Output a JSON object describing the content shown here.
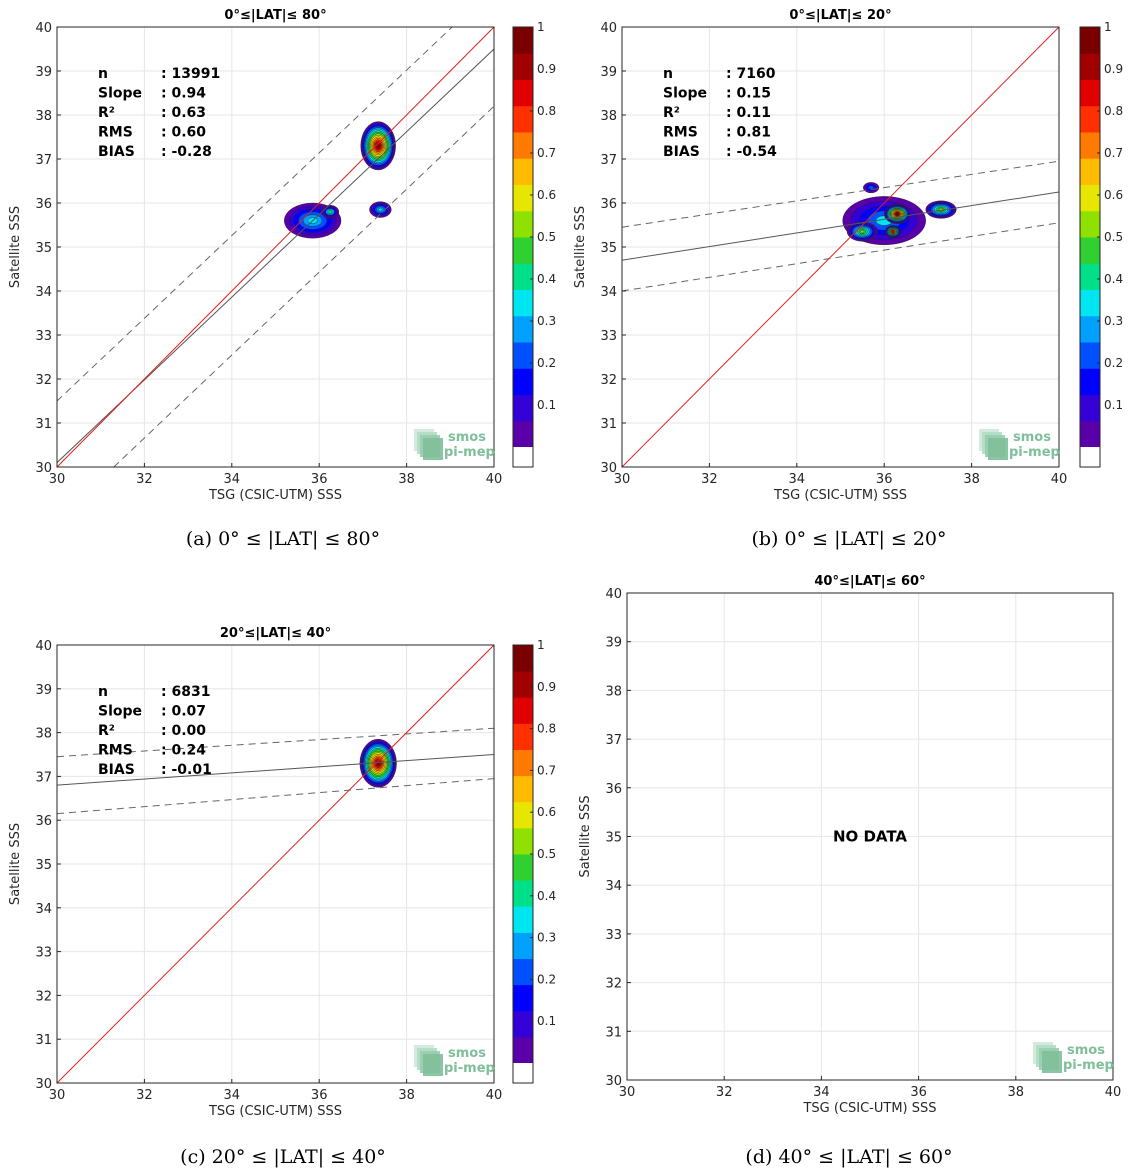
{
  "colors": {
    "identity_line": "#e02020",
    "fit_line": "#555555",
    "grid": "#e6e6e6",
    "colormap": [
      "#5a00a8",
      "#3300d8",
      "#0000ff",
      "#0050ff",
      "#00a0ff",
      "#00e6f0",
      "#00e08a",
      "#30d030",
      "#90e000",
      "#e6e600",
      "#ffbb00",
      "#ff7a00",
      "#ff3000",
      "#e00000",
      "#a00000",
      "#7a0000"
    ]
  },
  "logo": {
    "line1": "smos",
    "line2": "pi-mep"
  },
  "charts": [
    {
      "id": "a",
      "title": "0°≤|LAT|≤ 80°",
      "caption": "(a) 0° ≤ |LAT| ≤ 80°",
      "xlabel": "TSG (CSIC-UTM) SSS",
      "ylabel": "Satellite SSS",
      "stats": [
        {
          "label": "n",
          "value": ": 13991"
        },
        {
          "label": "Slope",
          "value": ": 0.94"
        },
        {
          "label": "R²",
          "value": ": 0.63"
        },
        {
          "label": "RMS",
          "value": ": 0.60"
        },
        {
          "label": "BIAS",
          "value": ": -0.28"
        }
      ],
      "has_colorbar": true,
      "no_data": false
    },
    {
      "id": "b",
      "title": "0°≤|LAT|≤ 20°",
      "caption": "(b) 0° ≤ |LAT| ≤ 20°",
      "xlabel": "TSG (CSIC-UTM) SSS",
      "ylabel": "Satellite SSS",
      "stats": [
        {
          "label": "n",
          "value": ": 7160"
        },
        {
          "label": "Slope",
          "value": ": 0.15"
        },
        {
          "label": "R²",
          "value": ": 0.11"
        },
        {
          "label": "RMS",
          "value": ": 0.81"
        },
        {
          "label": "BIAS",
          "value": ": -0.54"
        }
      ],
      "has_colorbar": true,
      "no_data": false
    },
    {
      "id": "c",
      "title": "20°≤|LAT|≤ 40°",
      "caption": "(c) 20° ≤ |LAT| ≤ 40°",
      "xlabel": "TSG (CSIC-UTM) SSS",
      "ylabel": "Satellite SSS",
      "stats": [
        {
          "label": "n",
          "value": ": 6831"
        },
        {
          "label": "Slope",
          "value": ": 0.07"
        },
        {
          "label": "R²",
          "value": ": 0.00"
        },
        {
          "label": "RMS",
          "value": ": 0.24"
        },
        {
          "label": "BIAS",
          "value": ": -0.01"
        }
      ],
      "has_colorbar": true,
      "no_data": false
    },
    {
      "id": "d",
      "title": "40°≤|LAT|≤ 60°",
      "caption": "(d) 40° ≤ |LAT| ≤ 60°",
      "xlabel": "TSG (CSIC-UTM) SSS",
      "ylabel": "Satellite SSS",
      "stats": [],
      "has_colorbar": false,
      "no_data": true,
      "no_data_text": "NO DATA"
    }
  ],
  "chart_data": [
    {
      "type": "scatter",
      "title": "0°≤|LAT|≤ 80°",
      "xlabel": "TSG (CSIC-UTM) SSS",
      "ylabel": "Satellite SSS",
      "xlim": [
        30,
        40
      ],
      "ylim": [
        30,
        40
      ],
      "xticks": [
        30,
        32,
        34,
        36,
        38,
        40
      ],
      "yticks": [
        30,
        31,
        32,
        33,
        34,
        35,
        36,
        37,
        38,
        39,
        40
      ],
      "grid": true,
      "identity_line": [
        [
          30,
          30
        ],
        [
          40,
          40
        ]
      ],
      "fit_line": [
        [
          30,
          30.1
        ],
        [
          40,
          39.5
        ]
      ],
      "envelope_upper": [
        [
          30,
          31.5
        ],
        [
          40,
          40.9
        ]
      ],
      "envelope_lower": [
        [
          31.3,
          30
        ],
        [
          40,
          38.2
        ]
      ],
      "density_blobs": [
        {
          "x": 37.35,
          "y": 37.3,
          "rx": 0.4,
          "ry": 0.55,
          "peak": 1.0
        },
        {
          "x": 35.85,
          "y": 35.6,
          "rx": 0.65,
          "ry": 0.4,
          "peak": 0.35
        },
        {
          "x": 36.25,
          "y": 35.8,
          "rx": 0.2,
          "ry": 0.15,
          "peak": 0.4
        },
        {
          "x": 37.4,
          "y": 35.85,
          "rx": 0.25,
          "ry": 0.18,
          "peak": 0.35
        }
      ],
      "colorbar": {
        "min": 0,
        "max": 1,
        "ticks": [
          0.1,
          0.2,
          0.3,
          0.4,
          0.5,
          0.6,
          0.7,
          0.8,
          0.9,
          1
        ]
      }
    },
    {
      "type": "scatter",
      "title": "0°≤|LAT|≤ 20°",
      "xlabel": "TSG (CSIC-UTM) SSS",
      "ylabel": "Satellite SSS",
      "xlim": [
        30,
        40
      ],
      "ylim": [
        30,
        40
      ],
      "xticks": [
        30,
        32,
        34,
        36,
        38,
        40
      ],
      "yticks": [
        30,
        31,
        32,
        33,
        34,
        35,
        36,
        37,
        38,
        39,
        40
      ],
      "grid": true,
      "identity_line": [
        [
          30,
          30
        ],
        [
          40,
          40
        ]
      ],
      "fit_line": [
        [
          30,
          34.7
        ],
        [
          40,
          36.25
        ]
      ],
      "envelope_upper": [
        [
          30,
          35.45
        ],
        [
          40,
          36.95
        ]
      ],
      "envelope_lower": [
        [
          30,
          34.0
        ],
        [
          40,
          35.55
        ]
      ],
      "density_blobs": [
        {
          "x": 36.0,
          "y": 35.6,
          "rx": 0.95,
          "ry": 0.55,
          "peak": 0.3
        },
        {
          "x": 35.5,
          "y": 35.35,
          "rx": 0.35,
          "ry": 0.22,
          "peak": 0.55
        },
        {
          "x": 36.3,
          "y": 35.75,
          "rx": 0.3,
          "ry": 0.22,
          "peak": 1.0
        },
        {
          "x": 36.2,
          "y": 35.35,
          "rx": 0.18,
          "ry": 0.14,
          "peak": 0.85
        },
        {
          "x": 37.3,
          "y": 35.85,
          "rx": 0.35,
          "ry": 0.2,
          "peak": 0.55
        },
        {
          "x": 35.7,
          "y": 36.35,
          "rx": 0.18,
          "ry": 0.12,
          "peak": 0.2
        }
      ],
      "colorbar": {
        "min": 0,
        "max": 1,
        "ticks": [
          0.1,
          0.2,
          0.3,
          0.4,
          0.5,
          0.6,
          0.7,
          0.8,
          0.9,
          1
        ]
      }
    },
    {
      "type": "scatter",
      "title": "20°≤|LAT|≤ 40°",
      "xlabel": "TSG (CSIC-UTM) SSS",
      "ylabel": "Satellite SSS",
      "xlim": [
        30,
        40
      ],
      "ylim": [
        30,
        40
      ],
      "xticks": [
        30,
        32,
        34,
        36,
        38,
        40
      ],
      "yticks": [
        30,
        31,
        32,
        33,
        34,
        35,
        36,
        37,
        38,
        39,
        40
      ],
      "grid": true,
      "identity_line": [
        [
          30,
          30
        ],
        [
          40,
          40
        ]
      ],
      "fit_line": [
        [
          30,
          36.8
        ],
        [
          40,
          37.5
        ]
      ],
      "envelope_upper": [
        [
          30,
          37.45
        ],
        [
          40,
          38.1
        ]
      ],
      "envelope_lower": [
        [
          30,
          36.15
        ],
        [
          40,
          36.95
        ]
      ],
      "density_blobs": [
        {
          "x": 37.35,
          "y": 37.3,
          "rx": 0.42,
          "ry": 0.55,
          "peak": 1.0
        }
      ],
      "colorbar": {
        "min": 0,
        "max": 1,
        "ticks": [
          0.1,
          0.2,
          0.3,
          0.4,
          0.5,
          0.6,
          0.7,
          0.8,
          0.9,
          1
        ]
      }
    },
    {
      "type": "scatter",
      "title": "40°≤|LAT|≤ 60°",
      "xlabel": "TSG (CSIC-UTM) SSS",
      "ylabel": "Satellite SSS",
      "xlim": [
        30,
        40
      ],
      "ylim": [
        30,
        40
      ],
      "xticks": [
        30,
        32,
        34,
        36,
        38,
        40
      ],
      "yticks": [
        30,
        31,
        32,
        33,
        34,
        35,
        36,
        37,
        38,
        39,
        40
      ],
      "grid": true,
      "no_data": true
    }
  ]
}
